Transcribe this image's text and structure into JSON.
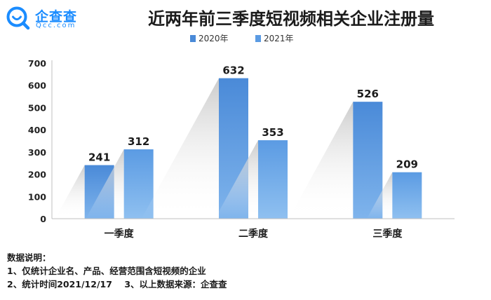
{
  "logo": {
    "name_cn": "企查查",
    "name_en": "Qcc.com",
    "icon": "magnifier-logo-icon",
    "color": "#1a8cff"
  },
  "colors": {
    "series_2020": "#4a8ad8",
    "series_2021": "#5b9be3",
    "axis": "#bfbfbf",
    "shadow": "#c8c8c8"
  },
  "chart_data": {
    "type": "bar",
    "title": "近两年前三季度短视频相关企业注册量",
    "categories": [
      "一季度",
      "二季度",
      "三季度"
    ],
    "series": [
      {
        "name": "2020年",
        "values": [
          241,
          632,
          526
        ]
      },
      {
        "name": "2021年",
        "values": [
          312,
          353,
          209
        ]
      }
    ],
    "ylim": [
      0,
      700
    ],
    "yticks": [
      0,
      100,
      200,
      300,
      400,
      500,
      600,
      700
    ],
    "grid": false,
    "legend": "top-center"
  },
  "notes": {
    "heading": "数据说明：",
    "line1": "1、仅统计企业名、产品、经营范围含短视频的企业",
    "line2": "2、统计时间2021/12/17",
    "line3": "3、以上数据来源：企查查"
  }
}
